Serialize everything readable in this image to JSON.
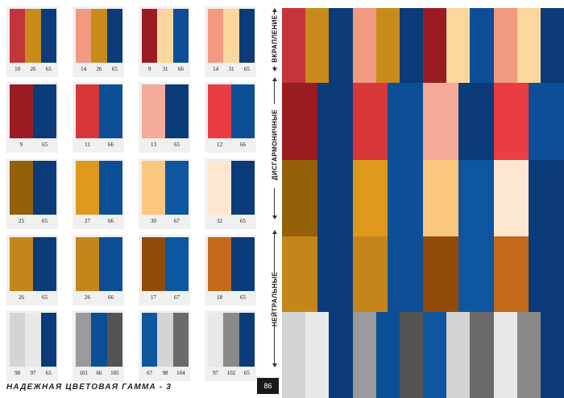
{
  "left_page": {
    "caption": "НАДЕЖНАЯ ЦВЕТОВАЯ ГАММА - 3",
    "page_number": "86",
    "group_labels": [
      "ВКРАПЛЕНИЕ",
      "ДИСГАРМОНИЧНЫЕ",
      "НЕЙТРАЛЬНЫЕ"
    ],
    "rows": [
      [
        {
          "colors": [
            "#c4343a",
            "#c98a1c",
            "#0b3b78"
          ],
          "codes": [
            "10",
            "26",
            "65"
          ]
        },
        {
          "colors": [
            "#f29a80",
            "#c98a1c",
            "#0b3b78"
          ],
          "codes": [
            "14",
            "26",
            "65"
          ]
        },
        {
          "colors": [
            "#9a1c22",
            "#fbd79e",
            "#0d4f96"
          ],
          "codes": [
            "9",
            "31",
            "66"
          ]
        },
        {
          "colors": [
            "#f29a80",
            "#fbd79e",
            "#0b3b78"
          ],
          "codes": [
            "14",
            "31",
            "65"
          ]
        }
      ],
      [
        {
          "colors": [
            "#9a1c22",
            "#0b3b78"
          ],
          "codes": [
            "9",
            "65"
          ]
        },
        {
          "colors": [
            "#d8373a",
            "#0d4f96"
          ],
          "codes": [
            "11",
            "66"
          ]
        },
        {
          "colors": [
            "#f6aa98",
            "#0b3b78"
          ],
          "codes": [
            "13",
            "65"
          ]
        },
        {
          "colors": [
            "#ea3d43",
            "#0d4f96"
          ],
          "codes": [
            "12",
            "66"
          ]
        }
      ],
      [
        {
          "colors": [
            "#946008",
            "#0b3b78"
          ],
          "codes": [
            "25",
            "65"
          ]
        },
        {
          "colors": [
            "#de981c",
            "#0d4f96"
          ],
          "codes": [
            "27",
            "66"
          ]
        },
        {
          "colors": [
            "#fbc77c",
            "#0e56a0"
          ],
          "codes": [
            "30",
            "67"
          ]
        },
        {
          "colors": [
            "#fde7d0",
            "#0b3b78"
          ],
          "codes": [
            "32",
            "65"
          ]
        }
      ],
      [
        {
          "colors": [
            "#c4861a",
            "#0b3b78"
          ],
          "codes": [
            "26",
            "65"
          ]
        },
        {
          "colors": [
            "#c4861a",
            "#0d4f96"
          ],
          "codes": [
            "26",
            "66"
          ]
        },
        {
          "colors": [
            "#924a0a",
            "#0e56a0"
          ],
          "codes": [
            "17",
            "67"
          ]
        },
        {
          "colors": [
            "#c26a1a",
            "#0b3b78"
          ],
          "codes": [
            "18",
            "65"
          ]
        }
      ],
      [
        {
          "colors": [
            "#d4d4d4",
            "#e8e8e8",
            "#0b3b78"
          ],
          "codes": [
            "98",
            "97",
            "65"
          ]
        },
        {
          "colors": [
            "#9a9a9a",
            "#0d4f96",
            "#545454"
          ],
          "codes": [
            "101",
            "66",
            "105"
          ]
        },
        {
          "colors": [
            "#0e56a0",
            "#d4d4d4",
            "#6a6a6a"
          ],
          "codes": [
            "67",
            "98",
            "104"
          ]
        },
        {
          "colors": [
            "#e8e8e8",
            "#8a8a8a",
            "#0b3b78"
          ],
          "codes": [
            "97",
            "102",
            "65"
          ]
        }
      ]
    ]
  },
  "mosaic": {
    "rows": [
      [
        "#c4343a",
        "#c98a1c",
        "#0b3b78",
        "#f29a80",
        "#c98a1c",
        "#0b3b78",
        "#9a1c22",
        "#fbd79e",
        "#0d4f96",
        "#f29a80",
        "#fbd79e",
        "#0b3b78"
      ],
      [
        "#9a1c22",
        "#0b3b78",
        "#d8373a",
        "#0d4f96",
        "#f6aa98",
        "#0b3b78",
        "#ea3d43",
        "#0d4f96"
      ],
      [
        "#946008",
        "#0b3b78",
        "#de981c",
        "#0d4f96",
        "#fbc77c",
        "#0e56a0",
        "#fde7d0",
        "#0b3b78"
      ],
      [
        "#c4861a",
        "#0b3b78",
        "#c4861a",
        "#0d4f96",
        "#924a0a",
        "#0e56a0",
        "#c26a1a",
        "#0b3b78"
      ],
      [
        "#d4d4d4",
        "#e8e8e8",
        "#0b3b78",
        "#9a9a9a",
        "#0d4f96",
        "#545454",
        "#0e56a0",
        "#d4d4d4",
        "#6a6a6a",
        "#e8e8e8",
        "#8a8a8a",
        "#0b3b78"
      ]
    ]
  }
}
